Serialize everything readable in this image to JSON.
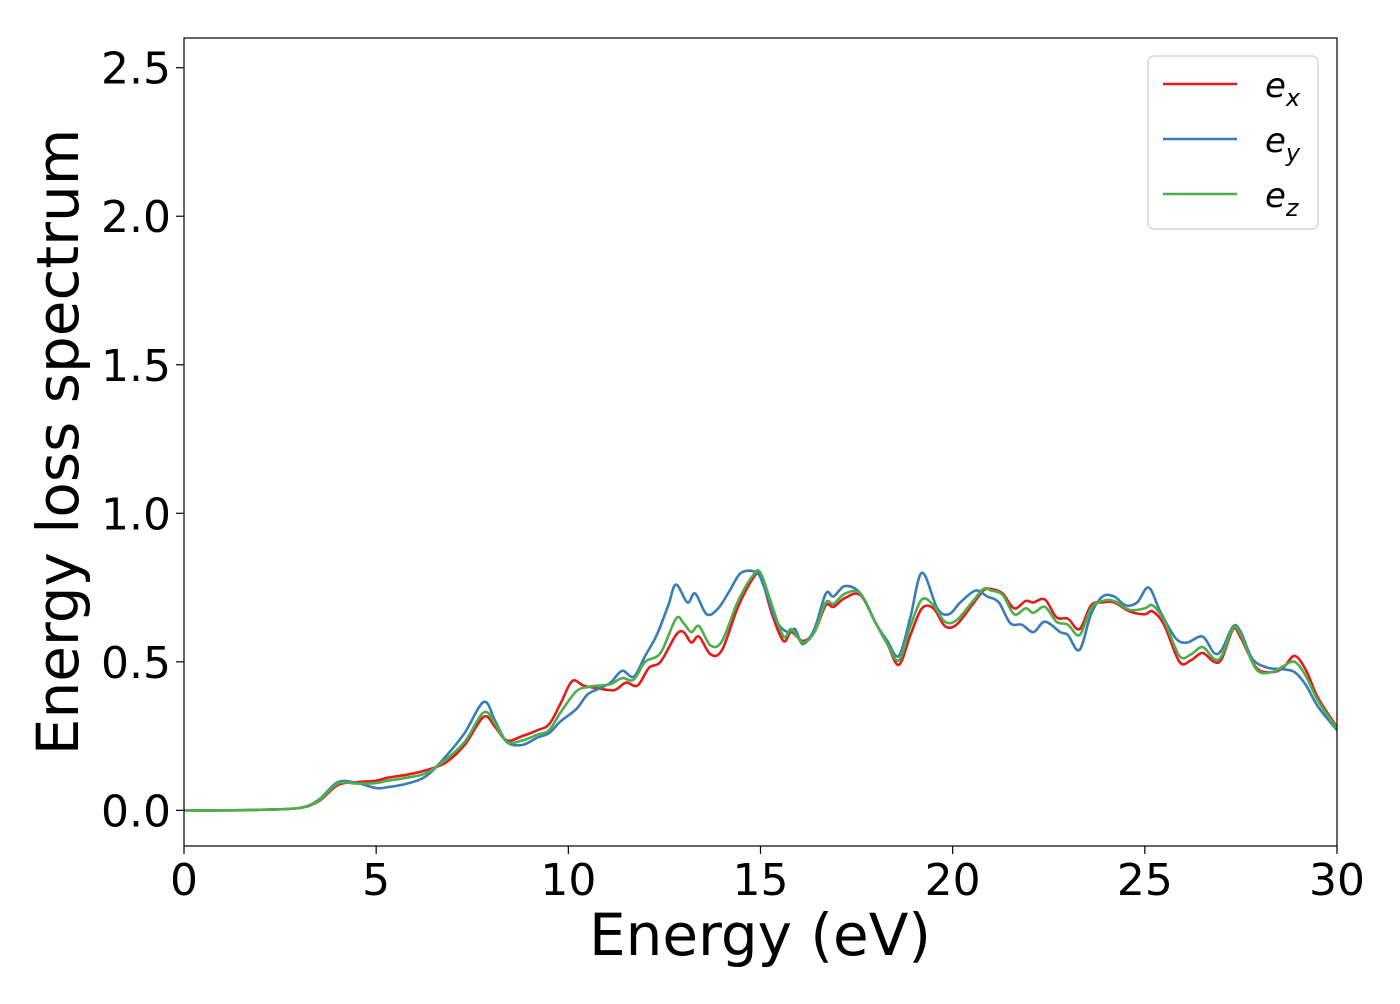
{
  "chart_data": {
    "type": "line",
    "title": "",
    "xlabel": "Energy (eV)",
    "ylabel": "Energy loss spectrum",
    "xlim": [
      0,
      30
    ],
    "ylim": [
      -0.12,
      2.6
    ],
    "xticks": [
      0,
      5,
      10,
      15,
      20,
      25,
      30
    ],
    "xtick_labels": [
      "0",
      "5",
      "10",
      "15",
      "20",
      "25",
      "30"
    ],
    "yticks": [
      0.0,
      0.5,
      1.0,
      1.5,
      2.0,
      2.5
    ],
    "ytick_labels": [
      "0.0",
      "0.5",
      "1.0",
      "1.5",
      "2.0",
      "2.5"
    ],
    "grid": false,
    "legend_position": "top-right",
    "series": [
      {
        "name": "e_x",
        "legend_base": "e",
        "legend_sub": "x",
        "color": "#e41a1c",
        "points": [
          [
            0,
            0.0
          ],
          [
            1,
            0.0
          ],
          [
            2,
            0.002
          ],
          [
            3,
            0.008
          ],
          [
            3.5,
            0.03
          ],
          [
            4,
            0.085
          ],
          [
            4.5,
            0.095
          ],
          [
            5,
            0.1
          ],
          [
            5.3,
            0.11
          ],
          [
            5.8,
            0.12
          ],
          [
            6.3,
            0.135
          ],
          [
            6.8,
            0.16
          ],
          [
            7.3,
            0.22
          ],
          [
            7.8,
            0.315
          ],
          [
            8.1,
            0.28
          ],
          [
            8.4,
            0.235
          ],
          [
            8.8,
            0.25
          ],
          [
            9.2,
            0.27
          ],
          [
            9.5,
            0.29
          ],
          [
            9.8,
            0.36
          ],
          [
            10.1,
            0.435
          ],
          [
            10.4,
            0.42
          ],
          [
            10.8,
            0.41
          ],
          [
            11.2,
            0.405
          ],
          [
            11.5,
            0.43
          ],
          [
            11.8,
            0.42
          ],
          [
            12.1,
            0.48
          ],
          [
            12.4,
            0.5
          ],
          [
            12.8,
            0.59
          ],
          [
            13.0,
            0.6
          ],
          [
            13.2,
            0.565
          ],
          [
            13.4,
            0.585
          ],
          [
            13.7,
            0.525
          ],
          [
            14.0,
            0.54
          ],
          [
            14.4,
            0.68
          ],
          [
            14.8,
            0.78
          ],
          [
            15.0,
            0.79
          ],
          [
            15.3,
            0.66
          ],
          [
            15.6,
            0.57
          ],
          [
            15.8,
            0.6
          ],
          [
            16.1,
            0.57
          ],
          [
            16.4,
            0.6
          ],
          [
            16.7,
            0.69
          ],
          [
            16.9,
            0.685
          ],
          [
            17.2,
            0.715
          ],
          [
            17.6,
            0.725
          ],
          [
            18.0,
            0.63
          ],
          [
            18.3,
            0.56
          ],
          [
            18.6,
            0.49
          ],
          [
            18.9,
            0.59
          ],
          [
            19.2,
            0.68
          ],
          [
            19.5,
            0.68
          ],
          [
            19.8,
            0.62
          ],
          [
            20.1,
            0.625
          ],
          [
            20.5,
            0.69
          ],
          [
            20.8,
            0.74
          ],
          [
            21.0,
            0.745
          ],
          [
            21.3,
            0.73
          ],
          [
            21.6,
            0.68
          ],
          [
            21.9,
            0.705
          ],
          [
            22.1,
            0.7
          ],
          [
            22.4,
            0.71
          ],
          [
            22.7,
            0.65
          ],
          [
            23.0,
            0.645
          ],
          [
            23.3,
            0.61
          ],
          [
            23.6,
            0.69
          ],
          [
            23.9,
            0.7
          ],
          [
            24.2,
            0.7
          ],
          [
            24.6,
            0.67
          ],
          [
            25.0,
            0.66
          ],
          [
            25.2,
            0.67
          ],
          [
            25.5,
            0.625
          ],
          [
            25.9,
            0.5
          ],
          [
            26.2,
            0.505
          ],
          [
            26.5,
            0.53
          ],
          [
            26.8,
            0.5
          ],
          [
            27.0,
            0.51
          ],
          [
            27.3,
            0.61
          ],
          [
            27.5,
            0.58
          ],
          [
            27.9,
            0.48
          ],
          [
            28.3,
            0.465
          ],
          [
            28.6,
            0.48
          ],
          [
            28.9,
            0.52
          ],
          [
            29.2,
            0.47
          ],
          [
            29.5,
            0.38
          ],
          [
            30.0,
            0.28
          ]
        ]
      },
      {
        "name": "e_y",
        "legend_base": "e",
        "legend_sub": "y",
        "color": "#377eb8",
        "points": [
          [
            0,
            0.0
          ],
          [
            1,
            0.0
          ],
          [
            2,
            0.002
          ],
          [
            3,
            0.008
          ],
          [
            3.5,
            0.035
          ],
          [
            4,
            0.095
          ],
          [
            4.5,
            0.092
          ],
          [
            5,
            0.075
          ],
          [
            5.3,
            0.078
          ],
          [
            5.8,
            0.09
          ],
          [
            6.3,
            0.115
          ],
          [
            6.8,
            0.18
          ],
          [
            7.3,
            0.26
          ],
          [
            7.8,
            0.365
          ],
          [
            8.1,
            0.3
          ],
          [
            8.4,
            0.23
          ],
          [
            8.8,
            0.22
          ],
          [
            9.2,
            0.245
          ],
          [
            9.5,
            0.26
          ],
          [
            9.8,
            0.3
          ],
          [
            10.2,
            0.34
          ],
          [
            10.5,
            0.39
          ],
          [
            10.8,
            0.41
          ],
          [
            11.1,
            0.43
          ],
          [
            11.4,
            0.47
          ],
          [
            11.7,
            0.45
          ],
          [
            12.0,
            0.52
          ],
          [
            12.3,
            0.59
          ],
          [
            12.6,
            0.69
          ],
          [
            12.8,
            0.76
          ],
          [
            13.1,
            0.7
          ],
          [
            13.3,
            0.73
          ],
          [
            13.6,
            0.66
          ],
          [
            13.9,
            0.68
          ],
          [
            14.2,
            0.74
          ],
          [
            14.5,
            0.8
          ],
          [
            14.9,
            0.8
          ],
          [
            15.1,
            0.75
          ],
          [
            15.4,
            0.64
          ],
          [
            15.7,
            0.6
          ],
          [
            15.9,
            0.61
          ],
          [
            16.1,
            0.56
          ],
          [
            16.4,
            0.61
          ],
          [
            16.7,
            0.73
          ],
          [
            16.9,
            0.72
          ],
          [
            17.2,
            0.755
          ],
          [
            17.6,
            0.73
          ],
          [
            18.0,
            0.63
          ],
          [
            18.3,
            0.57
          ],
          [
            18.6,
            0.52
          ],
          [
            18.9,
            0.65
          ],
          [
            19.2,
            0.8
          ],
          [
            19.6,
            0.68
          ],
          [
            19.9,
            0.66
          ],
          [
            20.2,
            0.7
          ],
          [
            20.6,
            0.74
          ],
          [
            20.9,
            0.72
          ],
          [
            21.2,
            0.7
          ],
          [
            21.5,
            0.63
          ],
          [
            21.8,
            0.625
          ],
          [
            22.1,
            0.6
          ],
          [
            22.4,
            0.635
          ],
          [
            22.8,
            0.6
          ],
          [
            23.0,
            0.59
          ],
          [
            23.3,
            0.54
          ],
          [
            23.6,
            0.66
          ],
          [
            23.9,
            0.72
          ],
          [
            24.2,
            0.72
          ],
          [
            24.5,
            0.69
          ],
          [
            24.8,
            0.7
          ],
          [
            25.1,
            0.75
          ],
          [
            25.4,
            0.67
          ],
          [
            25.8,
            0.58
          ],
          [
            26.1,
            0.565
          ],
          [
            26.5,
            0.585
          ],
          [
            26.8,
            0.53
          ],
          [
            27.0,
            0.54
          ],
          [
            27.3,
            0.62
          ],
          [
            27.5,
            0.6
          ],
          [
            27.8,
            0.51
          ],
          [
            28.2,
            0.48
          ],
          [
            28.6,
            0.475
          ],
          [
            28.9,
            0.465
          ],
          [
            29.2,
            0.42
          ],
          [
            29.5,
            0.35
          ],
          [
            30.0,
            0.27
          ]
        ]
      },
      {
        "name": "e_z",
        "legend_base": "e",
        "legend_sub": "z",
        "color": "#4daf4a",
        "points": [
          [
            0,
            0.0
          ],
          [
            1,
            0.0
          ],
          [
            2,
            0.002
          ],
          [
            3,
            0.008
          ],
          [
            3.5,
            0.032
          ],
          [
            4,
            0.09
          ],
          [
            4.5,
            0.09
          ],
          [
            5,
            0.092
          ],
          [
            5.3,
            0.1
          ],
          [
            5.8,
            0.11
          ],
          [
            6.3,
            0.125
          ],
          [
            6.8,
            0.17
          ],
          [
            7.3,
            0.23
          ],
          [
            7.8,
            0.33
          ],
          [
            8.1,
            0.29
          ],
          [
            8.4,
            0.23
          ],
          [
            8.8,
            0.235
          ],
          [
            9.2,
            0.255
          ],
          [
            9.5,
            0.27
          ],
          [
            9.8,
            0.33
          ],
          [
            10.2,
            0.4
          ],
          [
            10.5,
            0.415
          ],
          [
            10.8,
            0.42
          ],
          [
            11.1,
            0.425
          ],
          [
            11.4,
            0.445
          ],
          [
            11.7,
            0.44
          ],
          [
            12.0,
            0.5
          ],
          [
            12.4,
            0.53
          ],
          [
            12.8,
            0.645
          ],
          [
            13.0,
            0.63
          ],
          [
            13.2,
            0.6
          ],
          [
            13.4,
            0.62
          ],
          [
            13.7,
            0.555
          ],
          [
            14.0,
            0.57
          ],
          [
            14.4,
            0.7
          ],
          [
            14.8,
            0.79
          ],
          [
            15.0,
            0.8
          ],
          [
            15.3,
            0.69
          ],
          [
            15.6,
            0.585
          ],
          [
            15.8,
            0.61
          ],
          [
            16.1,
            0.565
          ],
          [
            16.4,
            0.6
          ],
          [
            16.7,
            0.7
          ],
          [
            16.9,
            0.695
          ],
          [
            17.2,
            0.73
          ],
          [
            17.6,
            0.73
          ],
          [
            18.0,
            0.63
          ],
          [
            18.3,
            0.56
          ],
          [
            18.6,
            0.505
          ],
          [
            18.9,
            0.62
          ],
          [
            19.2,
            0.71
          ],
          [
            19.5,
            0.69
          ],
          [
            19.8,
            0.635
          ],
          [
            20.1,
            0.64
          ],
          [
            20.5,
            0.7
          ],
          [
            20.8,
            0.745
          ],
          [
            21.0,
            0.74
          ],
          [
            21.3,
            0.725
          ],
          [
            21.6,
            0.66
          ],
          [
            21.9,
            0.68
          ],
          [
            22.1,
            0.665
          ],
          [
            22.4,
            0.685
          ],
          [
            22.7,
            0.635
          ],
          [
            23.0,
            0.625
          ],
          [
            23.3,
            0.59
          ],
          [
            23.6,
            0.68
          ],
          [
            23.9,
            0.705
          ],
          [
            24.2,
            0.705
          ],
          [
            24.6,
            0.675
          ],
          [
            25.0,
            0.68
          ],
          [
            25.2,
            0.69
          ],
          [
            25.5,
            0.64
          ],
          [
            25.9,
            0.52
          ],
          [
            26.2,
            0.525
          ],
          [
            26.5,
            0.55
          ],
          [
            26.8,
            0.51
          ],
          [
            27.0,
            0.52
          ],
          [
            27.3,
            0.615
          ],
          [
            27.5,
            0.59
          ],
          [
            27.9,
            0.475
          ],
          [
            28.3,
            0.465
          ],
          [
            28.6,
            0.485
          ],
          [
            28.9,
            0.5
          ],
          [
            29.2,
            0.45
          ],
          [
            29.5,
            0.37
          ],
          [
            30.0,
            0.275
          ]
        ]
      }
    ]
  }
}
